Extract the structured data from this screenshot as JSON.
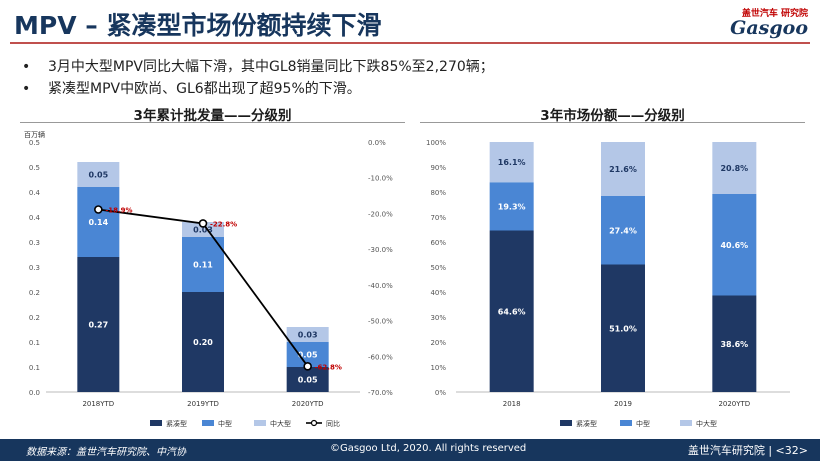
{
  "header": {
    "title": "MPV – 紧凑型市场份额持续下滑",
    "logo_cn": "盖世汽车 研究院",
    "logo_en": "Gasgoo"
  },
  "bullets": [
    "3月中大型MPV同比大幅下滑，其中GL8销量同比下跌85%至2,270辆；",
    "紧凑型MPV中欧尚、GL6都出现了超95%的下滑。"
  ],
  "colors": {
    "compact": "#1f3864",
    "mid": "#4a86d4",
    "midlarge": "#b4c7e7",
    "accent": "#c00000",
    "title": "#17365d"
  },
  "chart_data": [
    {
      "type": "bar",
      "title": "3年累计批发量——分级别",
      "ylabel": "百万辆",
      "stacked": true,
      "categories": [
        "2018YTD",
        "2019YTD",
        "2020YTD"
      ],
      "ylim": [
        0,
        0.5
      ],
      "y_ticks": [
        "0.0",
        "0.1",
        "0.1",
        "0.2",
        "0.2",
        "0.3",
        "0.3",
        "0.4",
        "0.4",
        "0.5",
        "0.5"
      ],
      "series": [
        {
          "name": "紧凑型",
          "values": [
            0.27,
            0.2,
            0.05
          ],
          "labels": [
            "0.27",
            "0.20",
            "0.05"
          ]
        },
        {
          "name": "中型",
          "values": [
            0.14,
            0.11,
            0.05
          ],
          "labels": [
            "0.14",
            "0.11",
            "0.05"
          ]
        },
        {
          "name": "中大型",
          "values": [
            0.05,
            0.03,
            0.03
          ],
          "labels": [
            "0.05",
            "0.03",
            "0.03"
          ]
        }
      ],
      "line_series": {
        "name": "同比",
        "values": [
          -18.9,
          -22.8,
          -62.8
        ],
        "labels": [
          "-18.9%",
          "-22.8%",
          "-62.8%"
        ],
        "y2lim": [
          -70,
          0
        ],
        "y2_ticks": [
          "0.0%",
          "-10.0%",
          "-20.0%",
          "-30.0%",
          "-40.0%",
          "-50.0%",
          "-60.0%",
          "-70.0%"
        ]
      },
      "legend_position": "bottom"
    },
    {
      "type": "bar",
      "title": "3年市场份额——分级别",
      "stacked": true,
      "percent": true,
      "categories": [
        "2018",
        "2019",
        "2020YTD"
      ],
      "ylim": [
        0,
        100
      ],
      "y_ticks": [
        "0%",
        "10%",
        "20%",
        "30%",
        "40%",
        "50%",
        "60%",
        "70%",
        "80%",
        "90%",
        "100%"
      ],
      "series": [
        {
          "name": "紧凑型",
          "values": [
            64.6,
            51.0,
            38.6
          ],
          "labels": [
            "64.6%",
            "51.0%",
            "38.6%"
          ]
        },
        {
          "name": "中型",
          "values": [
            19.3,
            27.4,
            40.6
          ],
          "labels": [
            "19.3%",
            "27.4%",
            "40.6%"
          ]
        },
        {
          "name": "中大型",
          "values": [
            16.1,
            21.6,
            20.8
          ],
          "labels": [
            "16.1%",
            "21.6%",
            "20.8%"
          ]
        }
      ],
      "legend_position": "bottom"
    }
  ],
  "footer": {
    "source": "数据来源：盖世汽车研究院、中汽协",
    "copyright": "©Gasgoo Ltd, 2020. All rights reserved",
    "brand": "盖世汽车研究院 | <32>"
  }
}
